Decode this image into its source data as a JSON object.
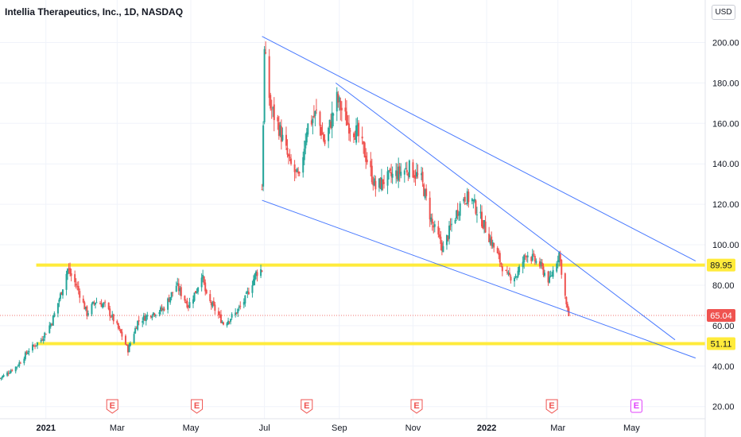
{
  "chart_data": {
    "type": "candlestick",
    "title": "Intellia Therapeutics, Inc., 1D, NASDAQ",
    "currency": "USD",
    "y_ticks": [
      20,
      40,
      60,
      80,
      100,
      120,
      140,
      160,
      180,
      200
    ],
    "y_tick_labels": [
      "20.00",
      "40.00",
      "60.00",
      "80.00",
      "100.00",
      "120.00",
      "140.00",
      "160.00",
      "180.00",
      "200.00"
    ],
    "ylim": [
      14,
      221
    ],
    "x_ticks": [
      {
        "label": "2021",
        "date": "2021-01-01",
        "bold": true
      },
      {
        "label": "Mar",
        "date": "2021-03-01",
        "bold": false
      },
      {
        "label": "May",
        "date": "2021-05-01",
        "bold": false
      },
      {
        "label": "Jul",
        "date": "2021-07-01",
        "bold": false
      },
      {
        "label": "Sep",
        "date": "2021-09-01",
        "bold": false
      },
      {
        "label": "Nov",
        "date": "2021-11-01",
        "bold": false
      },
      {
        "label": "2022",
        "date": "2022-01-01",
        "bold": true
      },
      {
        "label": "Mar",
        "date": "2022-03-01",
        "bold": false
      },
      {
        "label": "May",
        "date": "2022-05-01",
        "bold": false
      }
    ],
    "xlim": [
      "2020-11-24",
      "2022-07-01"
    ],
    "horizontal_levels": [
      {
        "value": 89.95,
        "label": "89.95",
        "color": "#ffeb3b"
      },
      {
        "value": 51.11,
        "label": "51.11",
        "color": "#ffeb3b"
      }
    ],
    "last_price": {
      "value": 65.04,
      "label": "65.04",
      "color": "#ef5350"
    },
    "trendlines": [
      {
        "from": {
          "date": "2021-06-29",
          "price": 203
        },
        "to": {
          "date": "2022-06-23",
          "price": 92
        }
      },
      {
        "from": {
          "date": "2021-08-29",
          "price": 180
        },
        "to": {
          "date": "2022-06-06",
          "price": 53
        }
      },
      {
        "from": {
          "date": "2021-06-29",
          "price": 122
        },
        "to": {
          "date": "2022-06-23",
          "price": 44
        }
      }
    ],
    "earnings_markers": [
      {
        "date": "2021-02-25",
        "label": "E",
        "upcoming": false
      },
      {
        "date": "2021-05-06",
        "label": "E",
        "upcoming": false
      },
      {
        "date": "2021-08-05",
        "label": "E",
        "upcoming": false
      },
      {
        "date": "2021-11-04",
        "label": "E",
        "upcoming": false
      },
      {
        "date": "2022-02-24",
        "label": "E",
        "upcoming": false
      },
      {
        "date": "2022-05-05",
        "label": "E",
        "upcoming": true
      }
    ],
    "price_path": [
      [
        "2020-11-24",
        34
      ],
      [
        "2020-12-08",
        40
      ],
      [
        "2020-12-18",
        48
      ],
      [
        "2020-12-28",
        53
      ],
      [
        "2021-01-06",
        62
      ],
      [
        "2021-01-13",
        75
      ],
      [
        "2021-01-19",
        88
      ],
      [
        "2021-01-27",
        79
      ],
      [
        "2021-02-04",
        66
      ],
      [
        "2021-02-11",
        72
      ],
      [
        "2021-02-19",
        70
      ],
      [
        "2021-02-26",
        63
      ],
      [
        "2021-03-05",
        55
      ],
      [
        "2021-03-10",
        48
      ],
      [
        "2021-03-18",
        62
      ],
      [
        "2021-03-29",
        66
      ],
      [
        "2021-04-08",
        68
      ],
      [
        "2021-04-19",
        80
      ],
      [
        "2021-04-29",
        70
      ],
      [
        "2021-05-06",
        78
      ],
      [
        "2021-05-10",
        86
      ],
      [
        "2021-05-14",
        74
      ],
      [
        "2021-05-21",
        68
      ],
      [
        "2021-05-28",
        61
      ],
      [
        "2021-06-07",
        66
      ],
      [
        "2021-06-15",
        73
      ],
      [
        "2021-06-24",
        86
      ],
      [
        "2021-06-29",
        88
      ]
    ],
    "price_path_2": [
      [
        "2021-06-29",
        128
      ],
      [
        "2021-07-01",
        195
      ],
      [
        "2021-07-06",
        168
      ],
      [
        "2021-07-13",
        158
      ],
      [
        "2021-07-22",
        140
      ],
      [
        "2021-07-30",
        132
      ],
      [
        "2021-08-05",
        158
      ],
      [
        "2021-08-13",
        165
      ],
      [
        "2021-08-20",
        150
      ],
      [
        "2021-08-30",
        172
      ],
      [
        "2021-09-08",
        160
      ],
      [
        "2021-09-16",
        155
      ],
      [
        "2021-09-24",
        142
      ],
      [
        "2021-10-01",
        128
      ],
      [
        "2021-10-08",
        132
      ],
      [
        "2021-10-18",
        135
      ],
      [
        "2021-10-29",
        138
      ],
      [
        "2021-11-08",
        132
      ],
      [
        "2021-11-17",
        110
      ],
      [
        "2021-11-26",
        98
      ],
      [
        "2021-12-03",
        110
      ],
      [
        "2021-12-13",
        124
      ],
      [
        "2021-12-20",
        122
      ],
      [
        "2021-12-28",
        112
      ],
      [
        "2022-01-06",
        100
      ],
      [
        "2022-01-18",
        84
      ],
      [
        "2022-01-26",
        85
      ],
      [
        "2022-02-03",
        96
      ],
      [
        "2022-02-14",
        90
      ],
      [
        "2022-02-22",
        82
      ],
      [
        "2022-03-02",
        96
      ],
      [
        "2022-03-08",
        70
      ],
      [
        "2022-03-10",
        65
      ]
    ]
  }
}
